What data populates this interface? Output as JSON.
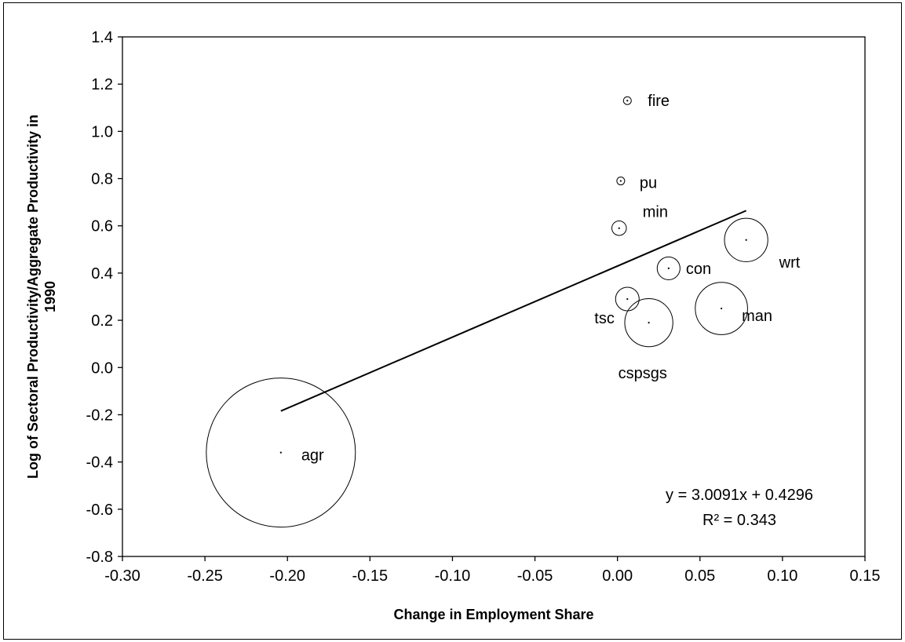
{
  "chart_data": {
    "type": "scatter",
    "title": "",
    "xlabel": "Change in Employment Share",
    "ylabel_lines": [
      "Log of Sectoral Productivity/Aggregate Productivity in",
      "1990"
    ],
    "xlim": [
      -0.3,
      0.15
    ],
    "ylim": [
      -0.8,
      1.4
    ],
    "x_ticks": [
      "-0.30",
      "-0.25",
      "-0.20",
      "-0.15",
      "-0.10",
      "-0.05",
      "0.00",
      "0.05",
      "0.10",
      "0.15"
    ],
    "y_ticks": [
      "-0.8",
      "-0.6",
      "-0.4",
      "-0.2",
      "0.0",
      "0.2",
      "0.4",
      "0.6",
      "0.8",
      "1.0",
      "1.2",
      "1.4"
    ],
    "grid": false,
    "bubble_size_meaning": "relative sector size (bubble area)",
    "points": [
      {
        "label": "agr",
        "x": -0.204,
        "y": -0.36,
        "size": 1.0
      },
      {
        "label": "fire",
        "x": 0.006,
        "y": 1.13,
        "size": 0.0024
      },
      {
        "label": "pu",
        "x": 0.002,
        "y": 0.79,
        "size": 0.0009
      },
      {
        "label": "min",
        "x": 0.001,
        "y": 0.59,
        "size": 0.0095
      },
      {
        "label": "wrt",
        "x": 0.078,
        "y": 0.54,
        "size": 0.0845
      },
      {
        "label": "con",
        "x": 0.031,
        "y": 0.42,
        "size": 0.0235
      },
      {
        "label": "tsc",
        "x": 0.006,
        "y": 0.29,
        "size": 0.025
      },
      {
        "label": "man",
        "x": 0.063,
        "y": 0.25,
        "size": 0.123
      },
      {
        "label": "cspsgs",
        "x": 0.019,
        "y": 0.19,
        "size": 0.104
      }
    ],
    "trendline": {
      "x_range": [
        -0.204,
        0.078
      ],
      "slope": 3.0091,
      "intercept": 0.4296,
      "equation_text": "y = 3.0091x + 0.4296",
      "r2_text": "R² = 0.343"
    }
  }
}
